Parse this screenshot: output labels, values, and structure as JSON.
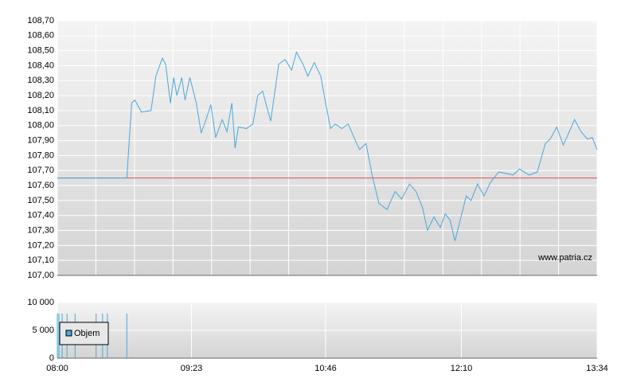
{
  "chart_data": [
    {
      "type": "line",
      "color": "#4aa8d8",
      "watermark": "www.patria.cz",
      "xlim": [
        "08:00",
        "13:34"
      ],
      "ylim": [
        107.0,
        108.7
      ],
      "yticks": [
        {
          "value": 107.0,
          "label": "107,00"
        },
        {
          "value": 107.1,
          "label": "107,10"
        },
        {
          "value": 107.2,
          "label": "107,20"
        },
        {
          "value": 107.3,
          "label": "107,30"
        },
        {
          "value": 107.4,
          "label": "107,40"
        },
        {
          "value": 107.5,
          "label": "107,50"
        },
        {
          "value": 107.6,
          "label": "107,60"
        },
        {
          "value": 107.7,
          "label": "107,70"
        },
        {
          "value": 107.8,
          "label": "107,80"
        },
        {
          "value": 107.9,
          "label": "107,90"
        },
        {
          "value": 108.0,
          "label": "108,00"
        },
        {
          "value": 108.1,
          "label": "108,10"
        },
        {
          "value": 108.2,
          "label": "108,20"
        },
        {
          "value": 108.3,
          "label": "108,30"
        },
        {
          "value": 108.4,
          "label": "108,40"
        },
        {
          "value": 108.5,
          "label": "108,50"
        },
        {
          "value": 108.6,
          "label": "108,60"
        },
        {
          "value": 108.7,
          "label": "108,70"
        }
      ],
      "reference_line": {
        "value": 107.65,
        "color": "#e05050"
      },
      "grid": true,
      "x": [
        "08:00",
        "08:43",
        "08:46",
        "08:48",
        "08:52",
        "08:58",
        "09:01",
        "09:05",
        "09:07",
        "09:10",
        "09:12",
        "09:14",
        "09:17",
        "09:19",
        "09:22",
        "09:26",
        "09:29",
        "09:32",
        "09:35",
        "09:38",
        "09:42",
        "09:45",
        "09:48",
        "09:50",
        "09:52",
        "09:57",
        "10:01",
        "10:04",
        "10:07",
        "10:12",
        "10:17",
        "10:21",
        "10:25",
        "10:28",
        "10:32",
        "10:35",
        "10:39",
        "10:43",
        "10:46",
        "10:49",
        "10:52",
        "10:56",
        "11:00",
        "11:04",
        "11:07",
        "11:11",
        "11:15",
        "11:19",
        "11:24",
        "11:29",
        "11:33",
        "11:38",
        "11:42",
        "11:46",
        "11:49",
        "11:53",
        "11:57",
        "12:00",
        "12:03",
        "12:06",
        "12:10",
        "12:13",
        "12:16",
        "12:20",
        "12:24",
        "12:28",
        "12:33",
        "12:38",
        "12:42",
        "12:46",
        "12:52",
        "12:57",
        "13:02",
        "13:05",
        "13:09",
        "13:13",
        "13:16",
        "13:20",
        "13:24",
        "13:28",
        "13:31",
        "13:34"
      ],
      "values": [
        107.65,
        107.65,
        108.15,
        108.17,
        108.09,
        108.1,
        108.33,
        108.45,
        108.41,
        108.15,
        108.32,
        108.2,
        108.32,
        108.17,
        108.32,
        108.15,
        107.95,
        108.04,
        108.14,
        107.92,
        108.04,
        107.96,
        108.15,
        107.85,
        107.99,
        107.98,
        108.01,
        108.2,
        108.23,
        108.03,
        108.41,
        108.44,
        108.37,
        108.49,
        108.41,
        108.33,
        108.42,
        108.33,
        108.15,
        107.98,
        108.01,
        107.98,
        108.01,
        107.91,
        107.84,
        107.88,
        107.66,
        107.48,
        107.44,
        107.56,
        107.51,
        107.61,
        107.56,
        107.45,
        107.3,
        107.39,
        107.32,
        107.41,
        107.37,
        107.23,
        107.4,
        107.53,
        107.5,
        107.61,
        107.53,
        107.62,
        107.69,
        107.68,
        107.67,
        107.71,
        107.67,
        107.69,
        107.88,
        107.91,
        107.99,
        107.87,
        107.94,
        108.04,
        107.96,
        107.91,
        107.92,
        107.84
      ]
    },
    {
      "type": "bar",
      "xlim": [
        "08:00",
        "13:34"
      ],
      "xticks": [
        "08:00",
        "09:23",
        "10:46",
        "12:10",
        "13:34"
      ],
      "ylim": [
        0,
        10000
      ],
      "yticks": [
        {
          "value": 0,
          "label": "0"
        },
        {
          "value": 5000,
          "label": "5 000"
        },
        {
          "value": 10000,
          "label": "10 000"
        }
      ],
      "grid": true,
      "legend": "upper-left",
      "x": [
        "08:00",
        "08:01",
        "08:03",
        "08:06",
        "08:11",
        "08:24",
        "08:28",
        "08:31",
        "08:43"
      ],
      "series": [
        {
          "name": "Objem",
          "color": "#4aa8d8",
          "values": [
            8000,
            8000,
            8000,
            8000,
            8000,
            8000,
            8000,
            8000,
            8000
          ]
        }
      ]
    }
  ]
}
